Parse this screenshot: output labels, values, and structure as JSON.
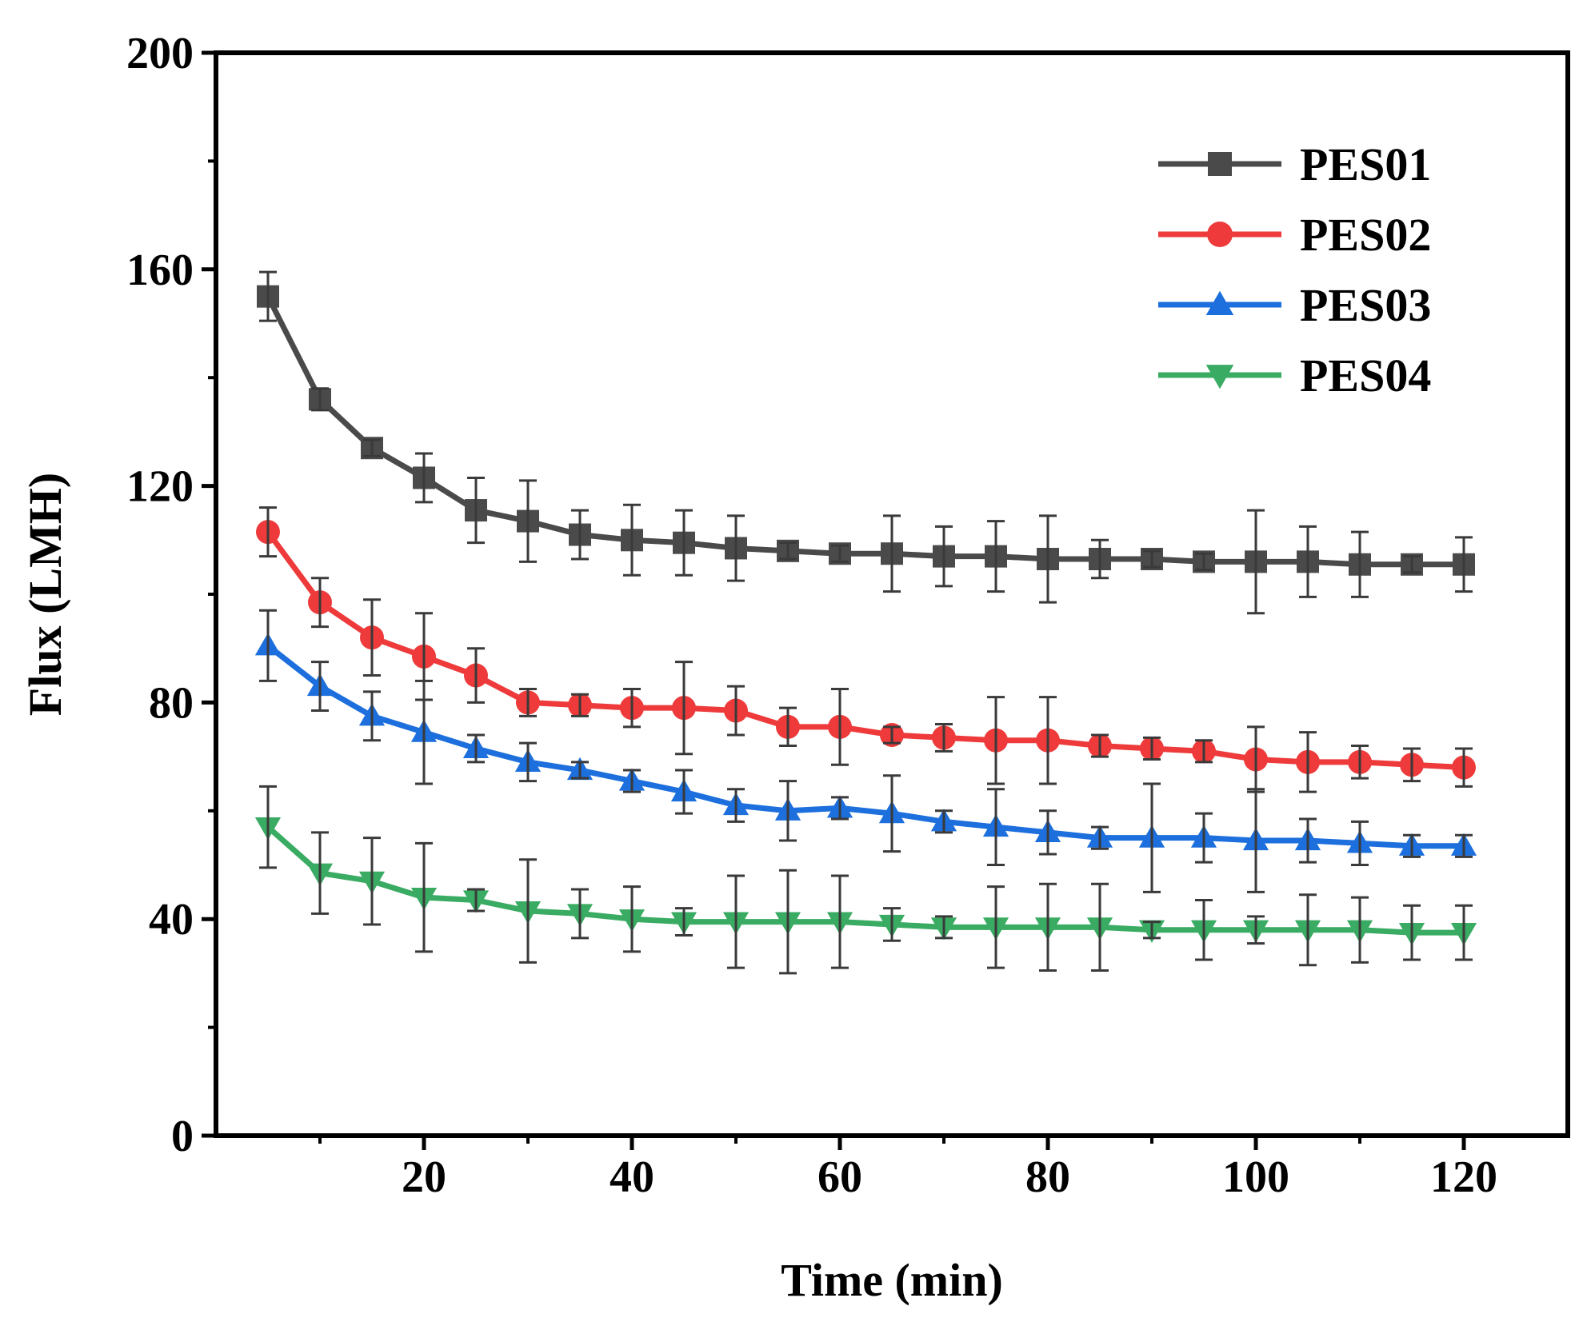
{
  "chart_data": {
    "type": "line",
    "xlabel": "Time (min)",
    "ylabel": "Flux (LMH)",
    "xlim": [
      0,
      130
    ],
    "ylim": [
      0,
      200
    ],
    "x_ticks": [
      20,
      40,
      60,
      80,
      100,
      120
    ],
    "y_ticks": [
      0,
      40,
      80,
      120,
      160,
      200
    ],
    "x_minor_ticks": [
      10,
      30,
      50,
      70,
      90,
      110
    ],
    "y_minor_ticks": [
      20,
      60,
      100,
      140,
      180
    ],
    "grid": false,
    "legend_position": "top-right",
    "x": [
      5,
      10,
      15,
      20,
      25,
      30,
      35,
      40,
      45,
      50,
      55,
      60,
      65,
      70,
      75,
      80,
      85,
      90,
      95,
      100,
      105,
      110,
      115,
      120
    ],
    "series": [
      {
        "name": "PES01",
        "color": "#4a4a4a",
        "marker": "square",
        "values": [
          155,
          136,
          127,
          121.5,
          115.5,
          113.5,
          111,
          110,
          109.5,
          108.5,
          108,
          107.5,
          107.5,
          107,
          107,
          106.5,
          106.5,
          106.5,
          106,
          106,
          106,
          105.5,
          105.5,
          105.5
        ],
        "errors": [
          4.5,
          2,
          1.5,
          4.5,
          6,
          7.5,
          4.5,
          6.5,
          6,
          6,
          1.5,
          1.5,
          7,
          5.5,
          6.5,
          8,
          3.5,
          1.5,
          1.5,
          9.5,
          6.5,
          6,
          1.5,
          5
        ]
      },
      {
        "name": "PES02",
        "color": "#ee3a3a",
        "marker": "circle",
        "values": [
          111.5,
          98.5,
          92,
          88.5,
          85,
          80,
          79.5,
          79,
          79,
          78.5,
          75.5,
          75.5,
          74,
          73.5,
          73,
          73,
          72,
          71.5,
          71,
          69.5,
          69,
          69,
          68.5,
          68
        ],
        "errors": [
          4.5,
          4.5,
          7,
          8,
          5,
          2.5,
          2,
          3.5,
          8.5,
          4.5,
          3.5,
          7,
          1.5,
          2.5,
          8,
          8,
          2,
          2,
          2,
          6,
          5.5,
          3,
          3,
          3.5
        ]
      },
      {
        "name": "PES03",
        "color": "#1c6fdc",
        "marker": "triangle-up",
        "values": [
          90.5,
          83,
          77.5,
          74.5,
          71.5,
          69,
          67.5,
          65.5,
          63.5,
          61,
          60,
          60.5,
          59.5,
          58,
          57,
          56,
          55,
          55,
          55,
          54.5,
          54.5,
          54,
          53.5,
          53.5
        ],
        "errors": [
          6.5,
          4.5,
          4.5,
          9.5,
          2.5,
          3.5,
          1.5,
          2,
          4,
          3,
          5.5,
          2,
          7,
          2,
          7,
          4,
          2,
          10,
          4.5,
          9.5,
          4,
          4,
          2,
          2
        ]
      },
      {
        "name": "PES04",
        "color": "#3aab62",
        "marker": "triangle-down",
        "values": [
          57,
          48.5,
          47,
          44,
          43.5,
          41.5,
          41,
          40,
          39.5,
          39.5,
          39.5,
          39.5,
          39,
          38.5,
          38.5,
          38.5,
          38.5,
          38,
          38,
          38,
          38,
          38,
          37.5,
          37.5
        ],
        "errors": [
          7.5,
          7.5,
          8,
          10,
          2,
          9.5,
          4.5,
          6,
          2.5,
          8.5,
          9.5,
          8.5,
          3,
          2,
          7.5,
          8,
          8,
          1.5,
          5.5,
          2.5,
          6.5,
          6,
          5,
          5
        ]
      }
    ]
  }
}
